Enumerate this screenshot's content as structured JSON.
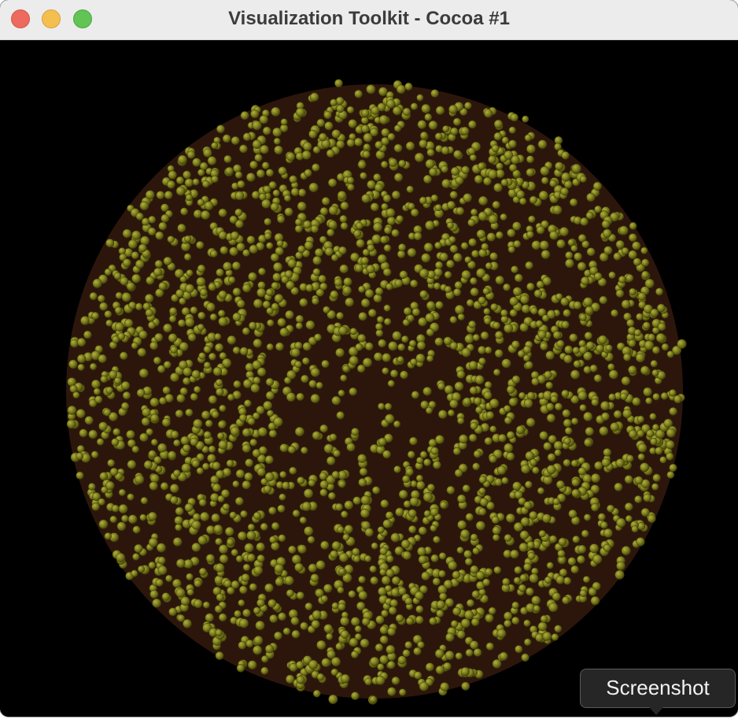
{
  "window": {
    "title": "Visualization Toolkit - Cocoa #1",
    "controls": [
      "close-button",
      "minimize-button",
      "zoom-button"
    ]
  },
  "viewport": {
    "background": "#000000",
    "particle_color": "#7d7d1c",
    "particle_highlight": "#a3a338",
    "gap_color": "#3a1c10"
  },
  "tooltip": {
    "label": "Screenshot"
  }
}
